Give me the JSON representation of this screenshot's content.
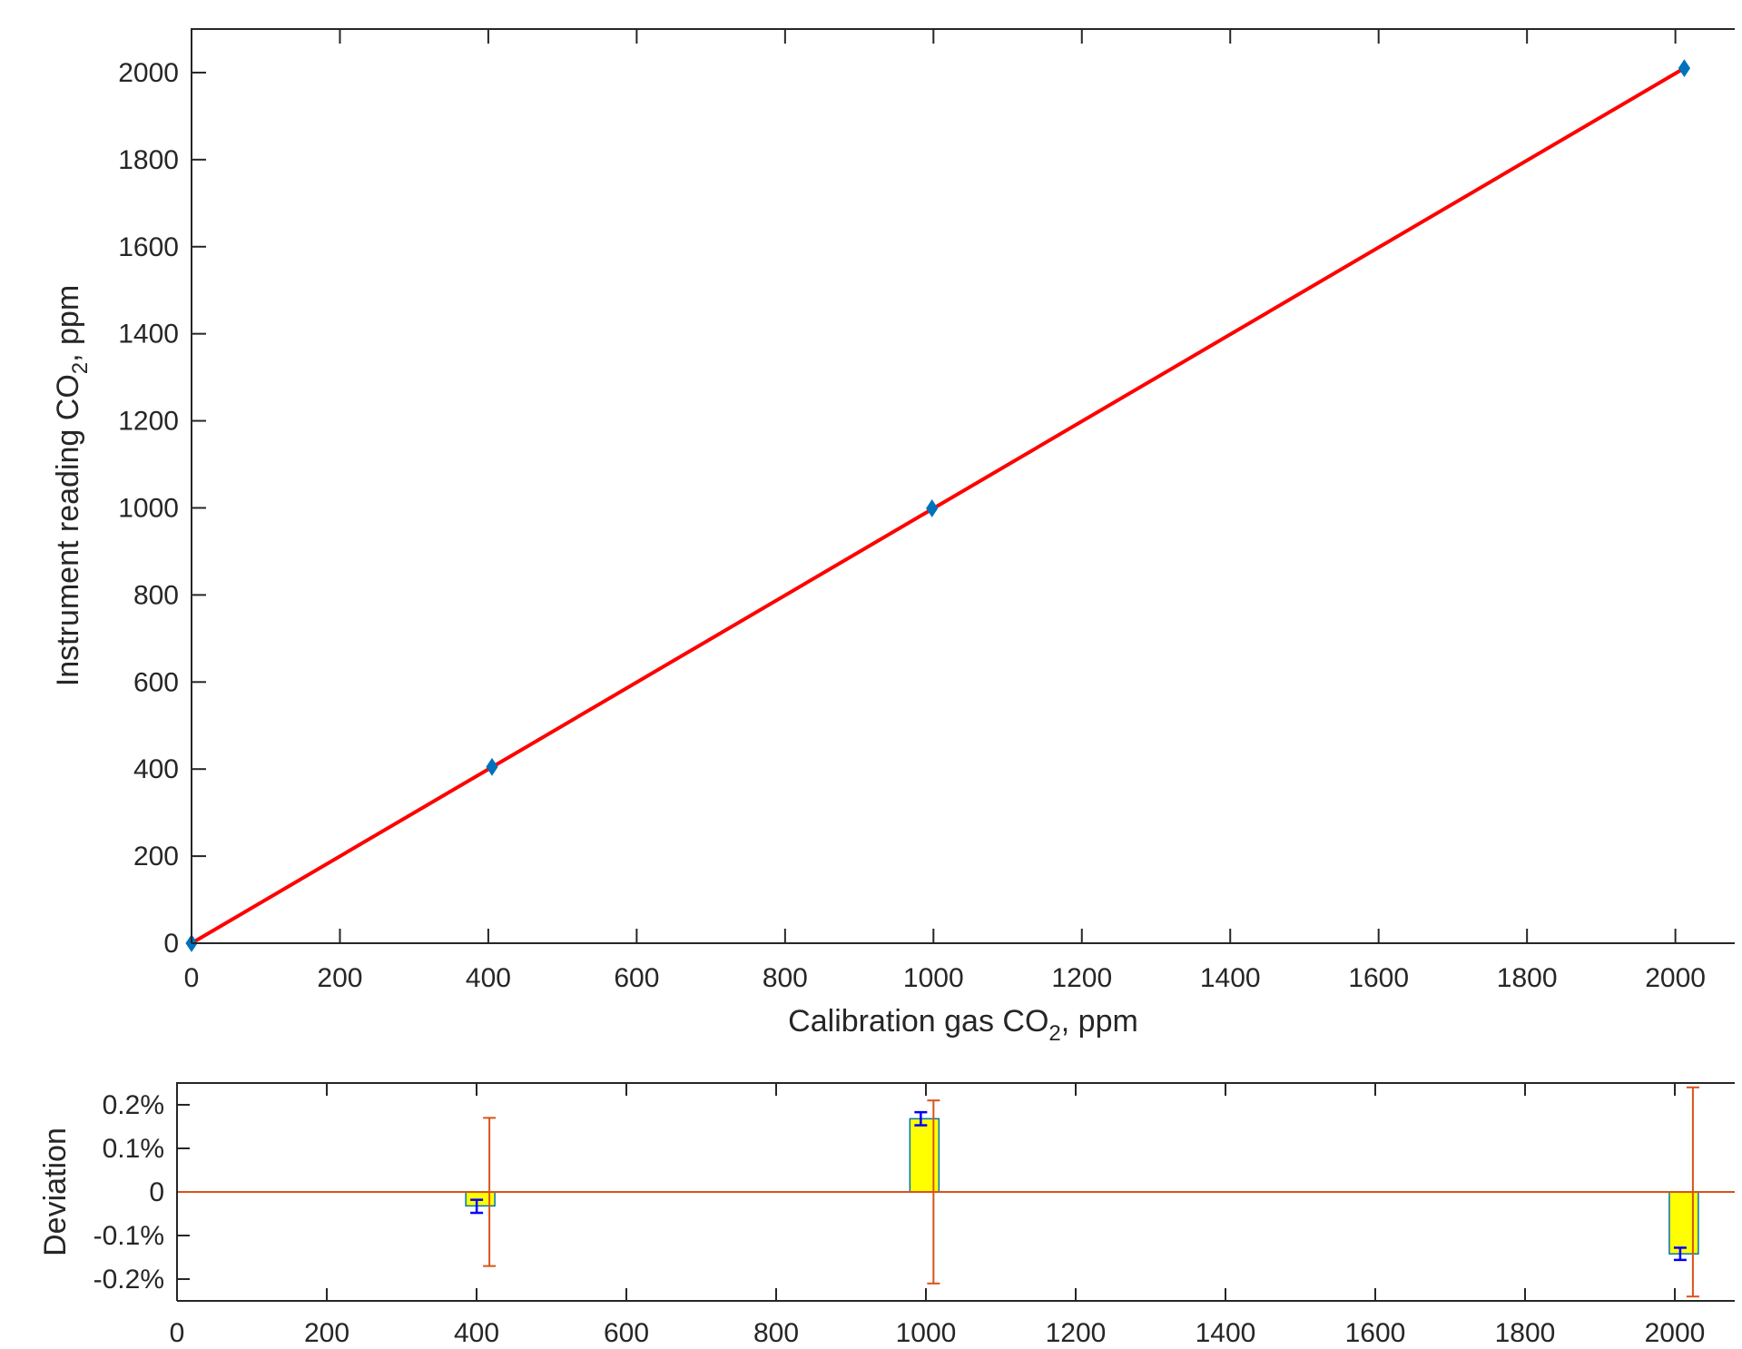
{
  "chart_data": [
    {
      "type": "line",
      "xlabel": "Calibration gas CO2, ppm",
      "ylabel": "Instrument reading CO2, ppm",
      "xlabel_parts": {
        "pre": "Calibration gas CO",
        "sub": "2",
        "post": ", ppm"
      },
      "ylabel_parts": {
        "pre": "Instrument reading CO",
        "sub": "2",
        "post": ", ppm"
      },
      "xlim": [
        0,
        2080
      ],
      "ylim": [
        0,
        2100
      ],
      "xticks": [
        0,
        200,
        400,
        600,
        800,
        1000,
        1200,
        1400,
        1600,
        1800,
        2000
      ],
      "yticks": [
        0,
        200,
        400,
        600,
        800,
        1000,
        1200,
        1400,
        1600,
        1800,
        2000
      ],
      "grid": false,
      "series": [
        {
          "kind": "scatter",
          "marker": "diamond",
          "color": "#0072BD",
          "x": [
            0,
            405,
            998,
            2012
          ],
          "y": [
            0,
            405,
            999,
            2010
          ]
        },
        {
          "kind": "fit-line",
          "color": "#FF0000",
          "x": [
            0,
            2012
          ],
          "y": [
            0,
            2010
          ]
        }
      ]
    },
    {
      "type": "bar",
      "ylabel": "Deviation",
      "xlim": [
        0,
        2080
      ],
      "ylim": [
        -0.0025,
        0.0025
      ],
      "xticks": [
        0,
        200,
        400,
        600,
        800,
        1000,
        1200,
        1400,
        1600,
        1800,
        2000
      ],
      "yticks": [
        0.002,
        0.001,
        0,
        -0.001,
        -0.002
      ],
      "ytick_labels": [
        "0.2%",
        "0.1%",
        "0",
        "-0.1%",
        "-0.2%"
      ],
      "bar_color": "#FFFF00",
      "bar_edge_color": "#0072BD",
      "zero_line_color": "#D95319",
      "x": [
        405,
        998,
        2012
      ],
      "values": [
        -0.00032,
        0.00168,
        -0.00142
      ],
      "inner_error": [
        [
          -0.00048,
          -0.00018
        ],
        [
          0.00153,
          0.00183
        ],
        [
          -0.00156,
          -0.00128
        ]
      ],
      "inner_error_color": "#0000FF",
      "outer_error": [
        [
          -0.0017,
          0.0017
        ],
        [
          -0.0021,
          0.0021
        ],
        [
          -0.0024,
          0.0024
        ]
      ],
      "outer_error_color": "#D95319"
    }
  ]
}
